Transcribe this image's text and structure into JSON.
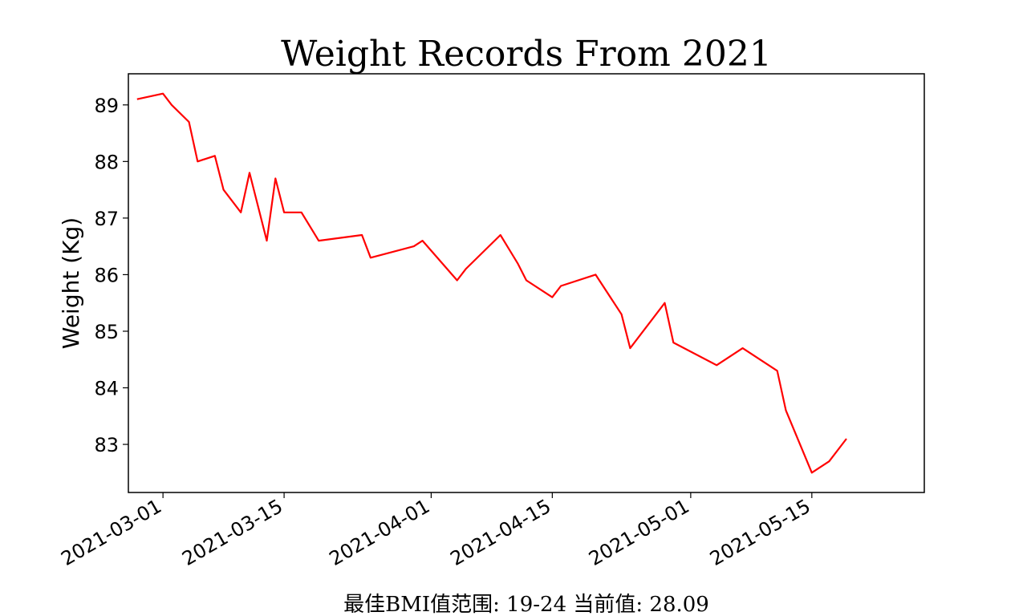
{
  "chart_data": {
    "type": "line",
    "title": "Weight Records From 2021",
    "xlabel": "",
    "ylabel": "Weight (Kg)",
    "footnote": "最佳BMI值范围: 19-24 当前值: 28.09",
    "xlim": [
      "2021-02-25",
      "2021-05-28"
    ],
    "ylim": [
      82.15,
      89.55
    ],
    "x_ticks": [
      "2021-03-01",
      "2021-03-15",
      "2021-04-01",
      "2021-04-15",
      "2021-05-01",
      "2021-05-15"
    ],
    "y_ticks": [
      83,
      84,
      85,
      86,
      87,
      88,
      89
    ],
    "grid": false,
    "line_color": "#ff0000",
    "series": [
      {
        "points": [
          {
            "x": "2021-02-26",
            "y": 89.1
          },
          {
            "x": "2021-03-01",
            "y": 89.2
          },
          {
            "x": "2021-03-02",
            "y": 89.0
          },
          {
            "x": "2021-03-04",
            "y": 88.7
          },
          {
            "x": "2021-03-05",
            "y": 88.0
          },
          {
            "x": "2021-03-07",
            "y": 88.1
          },
          {
            "x": "2021-03-08",
            "y": 87.5
          },
          {
            "x": "2021-03-10",
            "y": 87.1
          },
          {
            "x": "2021-03-11",
            "y": 87.8
          },
          {
            "x": "2021-03-13",
            "y": 86.6
          },
          {
            "x": "2021-03-14",
            "y": 87.7
          },
          {
            "x": "2021-03-15",
            "y": 87.1
          },
          {
            "x": "2021-03-17",
            "y": 87.1
          },
          {
            "x": "2021-03-19",
            "y": 86.6
          },
          {
            "x": "2021-03-24",
            "y": 86.7
          },
          {
            "x": "2021-03-25",
            "y": 86.3
          },
          {
            "x": "2021-03-30",
            "y": 86.5
          },
          {
            "x": "2021-03-31",
            "y": 86.6
          },
          {
            "x": "2021-04-04",
            "y": 85.9
          },
          {
            "x": "2021-04-05",
            "y": 86.1
          },
          {
            "x": "2021-04-09",
            "y": 86.7
          },
          {
            "x": "2021-04-11",
            "y": 86.2
          },
          {
            "x": "2021-04-12",
            "y": 85.9
          },
          {
            "x": "2021-04-15",
            "y": 85.6
          },
          {
            "x": "2021-04-16",
            "y": 85.8
          },
          {
            "x": "2021-04-20",
            "y": 86.0
          },
          {
            "x": "2021-04-23",
            "y": 85.3
          },
          {
            "x": "2021-04-24",
            "y": 84.7
          },
          {
            "x": "2021-04-28",
            "y": 85.5
          },
          {
            "x": "2021-04-29",
            "y": 84.8
          },
          {
            "x": "2021-05-04",
            "y": 84.4
          },
          {
            "x": "2021-05-07",
            "y": 84.7
          },
          {
            "x": "2021-05-11",
            "y": 84.3
          },
          {
            "x": "2021-05-12",
            "y": 83.6
          },
          {
            "x": "2021-05-15",
            "y": 82.5
          },
          {
            "x": "2021-05-17",
            "y": 82.7
          },
          {
            "x": "2021-05-19",
            "y": 83.1
          }
        ]
      }
    ]
  }
}
